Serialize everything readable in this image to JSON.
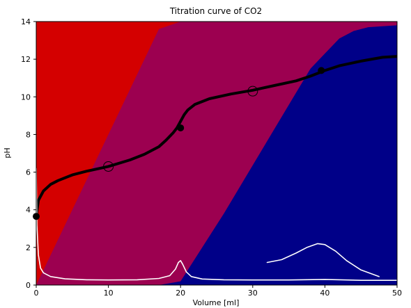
{
  "chart_data": {
    "type": "line",
    "title": "Titration curve of CO2",
    "xlabel": "Volume [ml]",
    "ylabel": "pH",
    "xlim": [
      0,
      50
    ],
    "ylim": [
      0,
      14
    ],
    "xticks": [
      "0",
      "10",
      "20",
      "30",
      "40",
      "50"
    ],
    "yticks": [
      "0",
      "2",
      "4",
      "6",
      "8",
      "10",
      "12",
      "14"
    ],
    "grid": false,
    "legend": "none",
    "colors": {
      "species_1": "#d40000",
      "species_2": "#9c0050",
      "species_3": "#000088",
      "curve": "#000000",
      "derivative": "#ffffff"
    },
    "fractions": {
      "x": [
        0,
        17,
        20,
        26,
        38,
        40,
        42,
        44,
        46,
        50
      ],
      "boundary_1": [
        0,
        13.6,
        14,
        14,
        14,
        14,
        14,
        14,
        14,
        14
      ],
      "boundary_2": [
        -0.3,
        0,
        0.2,
        3.8,
        11.5,
        12.3,
        13.1,
        13.5,
        13.7,
        13.8
      ]
    },
    "series": [
      {
        "x": [
          0,
          0.3,
          1,
          2,
          3,
          5,
          7,
          10,
          13,
          15,
          17,
          18,
          19,
          19.5,
          20,
          20.5,
          21,
          22,
          24,
          27,
          30,
          33,
          36,
          38,
          40,
          42,
          45,
          48,
          50
        ],
        "values": [
          3.65,
          4.5,
          5.0,
          5.35,
          5.55,
          5.85,
          6.05,
          6.3,
          6.65,
          6.95,
          7.35,
          7.7,
          8.1,
          8.35,
          8.7,
          9.05,
          9.3,
          9.6,
          9.9,
          10.15,
          10.35,
          10.6,
          10.85,
          11.1,
          11.4,
          11.65,
          11.9,
          12.1,
          12.15
        ]
      },
      {
        "x": [
          0,
          0.1,
          0.3,
          0.6,
          1,
          2,
          4,
          7,
          10,
          14,
          17,
          18.5,
          19.3,
          19.7,
          20,
          20.3,
          20.8,
          21.5,
          23,
          26,
          30,
          35,
          40,
          45,
          50
        ],
        "values": [
          6.2,
          3.2,
          1.6,
          0.9,
          0.65,
          0.45,
          0.33,
          0.28,
          0.27,
          0.28,
          0.35,
          0.5,
          0.85,
          1.2,
          1.3,
          1.1,
          0.7,
          0.45,
          0.32,
          0.28,
          0.27,
          0.27,
          0.3,
          0.25,
          0.25
        ]
      },
      {
        "x": [
          32,
          34,
          36,
          37.5,
          39,
          40,
          41.5,
          43,
          45,
          47.5
        ],
        "values": [
          1.2,
          1.35,
          1.7,
          2.0,
          2.2,
          2.15,
          1.8,
          1.3,
          0.8,
          0.45
        ]
      }
    ],
    "markers": {
      "filled": [
        {
          "x": 0,
          "y": 3.65
        },
        {
          "x": 20,
          "y": 8.35
        },
        {
          "x": 39.5,
          "y": 11.4
        }
      ],
      "open": [
        {
          "x": 10,
          "y": 6.3
        },
        {
          "x": 30,
          "y": 10.3
        }
      ]
    }
  }
}
